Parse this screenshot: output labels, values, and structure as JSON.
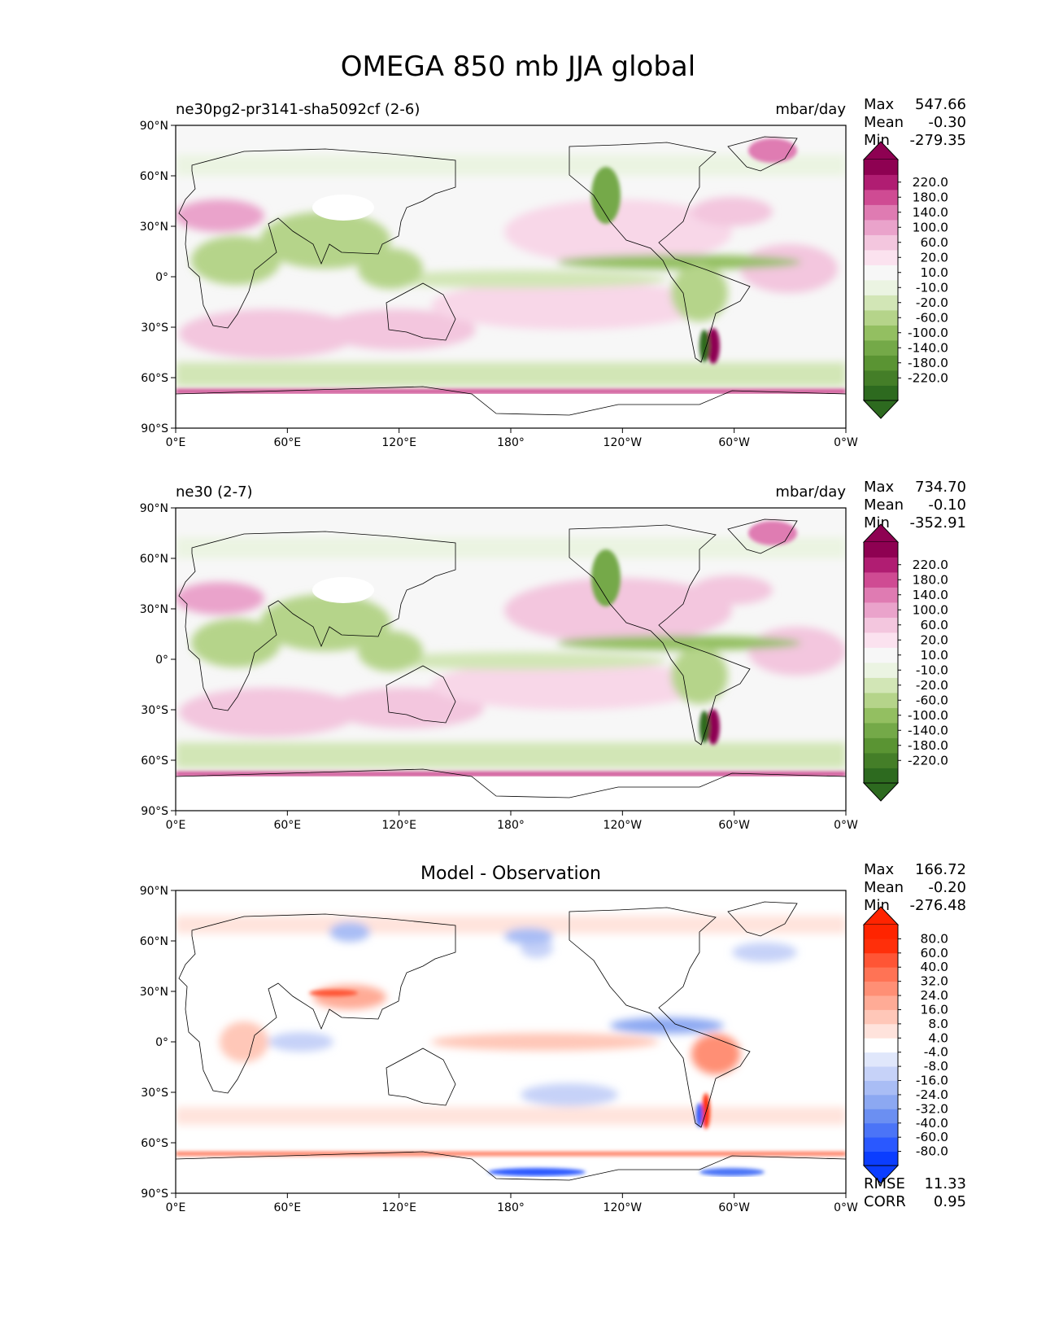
{
  "figure_title": "OMEGA 850 mb JJA global",
  "colors": {
    "test_levels": [
      "#2d6a1f",
      "#447e28",
      "#5a9433",
      "#74a948",
      "#93bf61",
      "#b5d48a",
      "#d2e6b6",
      "#ebf4e2",
      "#f7f7f7",
      "#fbe2ef",
      "#f3c6de",
      "#eaa3cb",
      "#df7bb2",
      "#cf4b93",
      "#b01d72",
      "#8e0152"
    ],
    "diff_levels": [
      "#0b3dff",
      "#2a58ff",
      "#4b74f7",
      "#6b8ff2",
      "#8ca8f2",
      "#a9bdf5",
      "#c6d2f8",
      "#e0e7fb",
      "#ffffff",
      "#ffe3dc",
      "#ffc7b8",
      "#ffab96",
      "#ff8f75",
      "#ff7355",
      "#ff5535",
      "#ff2f0a",
      "#ff2400"
    ],
    "coast": "#000000",
    "land_bg": "#f7f7f7"
  },
  "chart_data": [
    {
      "type": "heatmap",
      "panel": "test",
      "left_title": "ne30pg2-pr3141-sha5092cf (2-6)",
      "right_title": "mbar/day",
      "stats": {
        "max_label": "Max",
        "max": "547.66",
        "mean_label": "Mean",
        "mean": "-0.30",
        "min_label": "Min",
        "min": "-279.35"
      },
      "xticks": [
        "0°E",
        "60°E",
        "120°E",
        "180°",
        "120°W",
        "60°W",
        "0°W"
      ],
      "yticks": [
        "90°N",
        "60°N",
        "30°N",
        "0°",
        "30°S",
        "60°S",
        "90°S"
      ],
      "xlim": [
        0,
        360
      ],
      "ylim": [
        -90,
        90
      ],
      "colorbar_ticks": [
        "220.0",
        "180.0",
        "140.0",
        "100.0",
        "60.0",
        "20.0",
        "10.0",
        "-10.0",
        "-20.0",
        "-60.0",
        "-100.0",
        "-140.0",
        "-180.0",
        "-220.0"
      ]
    },
    {
      "type": "heatmap",
      "panel": "reference",
      "left_title": "ne30 (2-7)",
      "right_title": "mbar/day",
      "stats": {
        "max_label": "Max",
        "max": "734.70",
        "mean_label": "Mean",
        "mean": "-0.10",
        "min_label": "Min",
        "min": "-352.91"
      },
      "xticks": [
        "0°E",
        "60°E",
        "120°E",
        "180°",
        "120°W",
        "60°W",
        "0°W"
      ],
      "yticks": [
        "90°N",
        "60°N",
        "30°N",
        "0°",
        "30°S",
        "60°S",
        "90°S"
      ],
      "xlim": [
        0,
        360
      ],
      "ylim": [
        -90,
        90
      ],
      "colorbar_ticks": [
        "220.0",
        "180.0",
        "140.0",
        "100.0",
        "60.0",
        "20.0",
        "10.0",
        "-10.0",
        "-20.0",
        "-60.0",
        "-100.0",
        "-140.0",
        "-180.0",
        "-220.0"
      ]
    },
    {
      "type": "heatmap",
      "panel": "difference",
      "center_title": "Model - Observation",
      "stats": {
        "max_label": "Max",
        "max": "166.72",
        "mean_label": "Mean",
        "mean": "-0.20",
        "min_label": "Min",
        "min": "-276.48"
      },
      "xticks": [
        "0°E",
        "60°E",
        "120°E",
        "180°",
        "120°W",
        "60°W",
        "0°W"
      ],
      "yticks": [
        "90°N",
        "60°N",
        "30°N",
        "0°",
        "30°S",
        "60°S",
        "90°S"
      ],
      "xlim": [
        0,
        360
      ],
      "ylim": [
        -90,
        90
      ],
      "colorbar_ticks": [
        "80.0",
        "60.0",
        "40.0",
        "32.0",
        "24.0",
        "16.0",
        "8.0",
        "4.0",
        "-4.0",
        "-8.0",
        "-16.0",
        "-24.0",
        "-32.0",
        "-40.0",
        "-60.0",
        "-80.0"
      ],
      "metrics": {
        "rmse_label": "RMSE",
        "rmse": "11.33",
        "corr_label": "CORR",
        "corr": "0.95"
      }
    }
  ]
}
